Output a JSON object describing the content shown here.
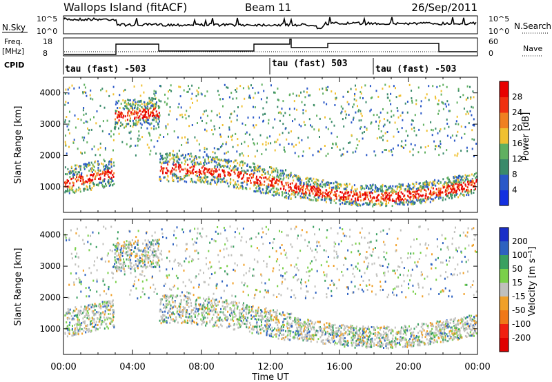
{
  "header": {
    "station": "Wallops Island (fitACF)",
    "beam": "Beam 11",
    "date": "26/Sep/2011"
  },
  "status_panels": {
    "nsky_label": "N.Sky",
    "nsky_ticks": [
      "10^5",
      "10^0"
    ],
    "nsearch_label": "N.Search",
    "freq_label_line1": "Freq.",
    "freq_label_line2": "[MHz]",
    "freq_ticks": [
      "18",
      "8"
    ],
    "nave_ticks": [
      "60",
      "0"
    ],
    "nave_label": "Nave",
    "cpid_label": "CPID",
    "cpid_segments": [
      "tau (fast) -503",
      "tau (fast) 503",
      "tau (fast) -503"
    ]
  },
  "chart_data": [
    {
      "type": "heatmap",
      "name": "power-panel",
      "ylabel": "Slant Range [km]",
      "yticks": [
        1000,
        2000,
        3000,
        4000
      ],
      "ylim": [
        180,
        4500
      ],
      "colorbar": {
        "label": "Power [dB]",
        "ticks": [
          4,
          8,
          12,
          16,
          20,
          24,
          28
        ],
        "range": [
          0,
          32
        ],
        "colors": [
          "#1430e0",
          "#2a58c8",
          "#3a8a6a",
          "#60b060",
          "#f0c030",
          "#f08020",
          "#f03010",
          "#e80000"
        ]
      }
    },
    {
      "type": "heatmap",
      "name": "velocity-panel",
      "ylabel": "Slant Range [km]",
      "yticks": [
        1000,
        2000,
        3000,
        4000
      ],
      "ylim": [
        180,
        4500
      ],
      "colorbar": {
        "label": "Velocity [m s⁻¹]",
        "ticks": [
          200,
          100,
          50,
          15,
          -15,
          -50,
          -100,
          -200
        ],
        "colors": [
          "#1a2ec8",
          "#2e62c0",
          "#3aa060",
          "#7ad04a",
          "#c0c0bc",
          "#f0a028",
          "#f07818",
          "#f02010",
          "#e00000"
        ]
      }
    }
  ],
  "time_axis": {
    "label": "Time UT",
    "ticks": [
      "00:00",
      "04:00",
      "08:00",
      "12:00",
      "16:00",
      "20:00",
      "00:00"
    ]
  }
}
